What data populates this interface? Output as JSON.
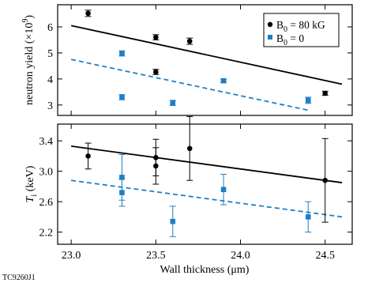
{
  "figure_code": "TC9260J1",
  "colors": {
    "black": "#000000",
    "blue": "#1f7fc4"
  },
  "chart_data": [
    {
      "type": "scatter",
      "panel": "top",
      "ylabel": "neutron yield (×10",
      "ylabel_exp": "9",
      "ylabel_close": ")",
      "xlim": [
        22.92,
        24.66
      ],
      "ylim": [
        2.6,
        6.85
      ],
      "yticks": [
        3,
        4,
        5,
        6
      ],
      "legend": {
        "placement": "top-right",
        "entries": [
          {
            "symbol": "B",
            "sub": "0",
            "rest": " = 80 kG",
            "marker": "circle",
            "color": "#000000"
          },
          {
            "symbol": "B",
            "sub": "0",
            "rest": " = 0",
            "marker": "square",
            "color": "#1f7fc4"
          }
        ]
      },
      "series": [
        {
          "color": "#000000",
          "marker": "circle",
          "points": [
            {
              "x": 23.1,
              "y": 6.52,
              "err": 0.12
            },
            {
              "x": 23.5,
              "y": 5.6,
              "err": 0.1
            },
            {
              "x": 23.5,
              "y": 4.27,
              "err": 0.1
            },
            {
              "x": 23.7,
              "y": 5.45,
              "err": 0.12
            },
            {
              "x": 24.5,
              "y": 3.45,
              "err": 0.08
            }
          ],
          "fit": {
            "x": [
              23.0,
              24.6
            ],
            "y": [
              6.05,
              3.8
            ],
            "style": "solid"
          }
        },
        {
          "color": "#1f7fc4",
          "marker": "square",
          "points": [
            {
              "x": 23.3,
              "y": 4.98,
              "err": 0.1
            },
            {
              "x": 23.3,
              "y": 3.3,
              "err": 0.1
            },
            {
              "x": 23.6,
              "y": 3.08,
              "err": 0.1
            },
            {
              "x": 23.9,
              "y": 3.93,
              "err": 0.06
            },
            {
              "x": 24.4,
              "y": 3.18,
              "err": 0.12
            }
          ],
          "fit": {
            "x": [
              23.0,
              24.4
            ],
            "y": [
              4.75,
              2.8
            ],
            "style": "dashed"
          }
        }
      ]
    },
    {
      "type": "scatter",
      "panel": "bottom",
      "ylabel_symbol": "T",
      "ylabel_sub": "i",
      "ylabel_unit": " (keV)",
      "xlabel": "Wall thickness (μm)",
      "xlim": [
        22.92,
        24.66
      ],
      "ylim": [
        2.04,
        3.62
      ],
      "yticks": [
        2.2,
        2.6,
        3.0,
        3.4
      ],
      "ytick_labels": [
        "2.2",
        "2.6",
        "3.0",
        "3.4"
      ],
      "xticks": [
        23.0,
        23.5,
        24.0,
        24.5
      ],
      "xtick_labels": [
        "23.0",
        "23.5",
        "24.0",
        "24.5"
      ],
      "series": [
        {
          "color": "#000000",
          "marker": "circle",
          "points": [
            {
              "x": 23.1,
              "y": 3.2,
              "err": 0.17
            },
            {
              "x": 23.5,
              "y": 3.18,
              "err": 0.24
            },
            {
              "x": 23.5,
              "y": 3.07,
              "err": 0.24
            },
            {
              "x": 23.7,
              "y": 3.3,
              "err": 0.42
            },
            {
              "x": 24.5,
              "y": 2.88,
              "err": 0.55
            }
          ],
          "fit": {
            "x": [
              23.0,
              24.6
            ],
            "y": [
              3.33,
              2.85
            ],
            "style": "solid"
          }
        },
        {
          "color": "#1f7fc4",
          "marker": "square",
          "points": [
            {
              "x": 23.3,
              "y": 2.92,
              "err": 0.3
            },
            {
              "x": 23.3,
              "y": 2.72,
              "err": 0.18
            },
            {
              "x": 23.6,
              "y": 2.34,
              "err": 0.2
            },
            {
              "x": 23.9,
              "y": 2.76,
              "err": 0.2
            },
            {
              "x": 24.4,
              "y": 2.4,
              "err": 0.2
            }
          ],
          "fit": {
            "x": [
              23.0,
              24.6
            ],
            "y": [
              2.88,
              2.4
            ],
            "style": "dashed"
          }
        }
      ]
    }
  ]
}
